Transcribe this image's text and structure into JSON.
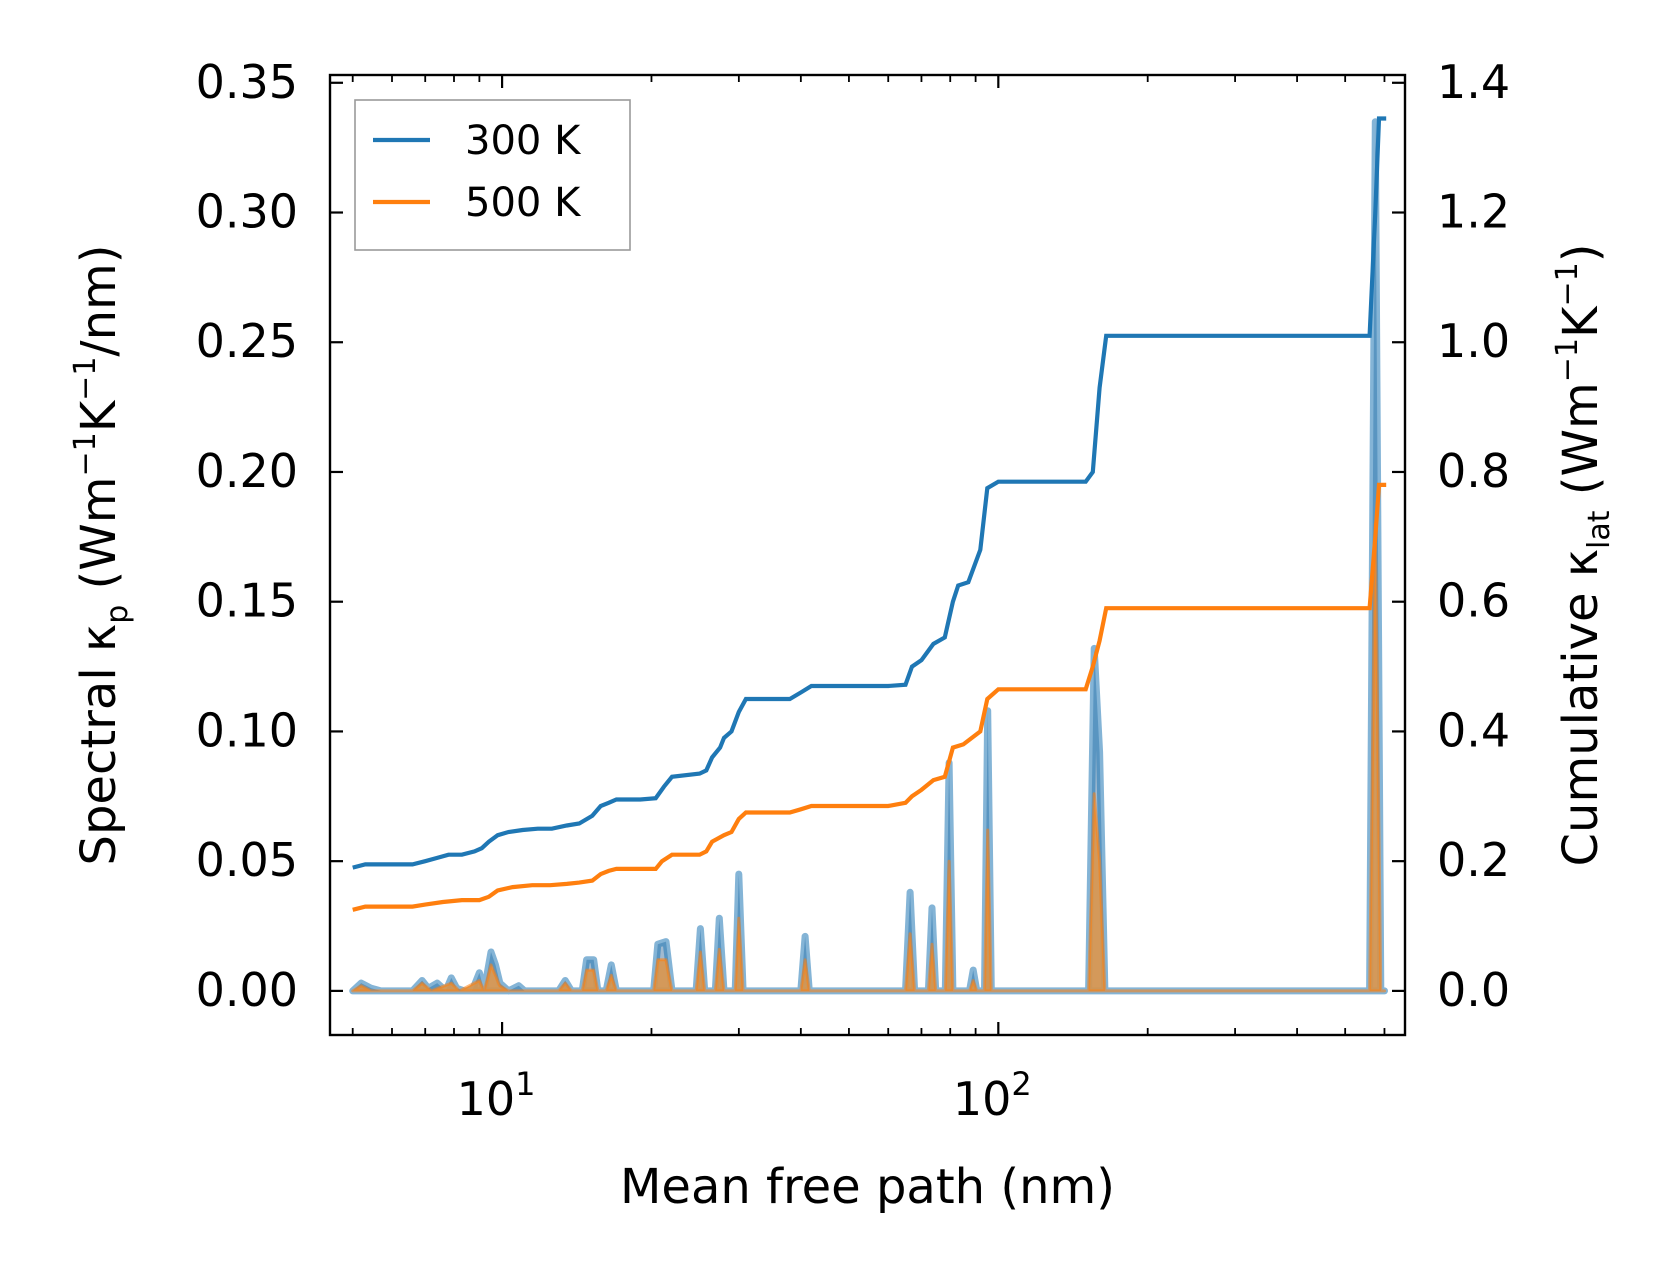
{
  "chart_data": {
    "type": "line",
    "xscale": "log",
    "xlim": [
      4.5,
      660
    ],
    "xlabel": "Mean free path (nm)",
    "x_ticks": [
      {
        "value": 10,
        "base": "10",
        "exp": "1"
      },
      {
        "value": 100,
        "base": "10",
        "exp": "2"
      }
    ],
    "y_left": {
      "label_prefix": "Spectral κ",
      "label_sub": "p",
      "label_mid": " (Wm",
      "label_sup1": "−1",
      "label_k": "K",
      "label_sup2": "−1",
      "label_suffix": "/nm)",
      "ylim": [
        -0.017,
        0.353
      ],
      "ticks": [
        0.0,
        0.05,
        0.1,
        0.15,
        0.2,
        0.25,
        0.3,
        0.35
      ],
      "tick_labels": [
        "0.00",
        "0.05",
        "0.10",
        "0.15",
        "0.20",
        "0.25",
        "0.30",
        "0.35"
      ]
    },
    "y_right": {
      "label_prefix": "Cumulative κ",
      "label_sub": "lat",
      "label_mid": " (Wm",
      "label_sup1": "−1",
      "label_k": "K",
      "label_sup2": "−1",
      "label_suffix": ")",
      "ylim": [
        -0.068,
        1.412
      ],
      "ticks": [
        0.0,
        0.2,
        0.4,
        0.6,
        0.8,
        1.0,
        1.2,
        1.4
      ],
      "tick_labels": [
        "0.0",
        "0.2",
        "0.4",
        "0.6",
        "0.8",
        "1.0",
        "1.2",
        "1.4"
      ]
    },
    "legend": {
      "position": "top-left",
      "entries": [
        {
          "label": "300 K",
          "color": "#1f77b4"
        },
        {
          "label": "500 K",
          "color": "#ff7f0e"
        }
      ]
    },
    "colors": {
      "t300": "#1f77b4",
      "t500": "#ff7f0e",
      "fill300": "#8aa9c4",
      "fill500": "#d9964c",
      "axis": "#000000",
      "legend_border": "#9a9a9a"
    },
    "series": [
      {
        "name": "300 K",
        "kind": "cumulative",
        "axis": "right",
        "points": [
          [
            5.0,
            0.19
          ],
          [
            5.3,
            0.195
          ],
          [
            5.6,
            0.195
          ],
          [
            6.0,
            0.195
          ],
          [
            6.6,
            0.195
          ],
          [
            7.0,
            0.2
          ],
          [
            7.4,
            0.205
          ],
          [
            7.8,
            0.21
          ],
          [
            8.3,
            0.21
          ],
          [
            8.8,
            0.215
          ],
          [
            9.1,
            0.22
          ],
          [
            9.4,
            0.23
          ],
          [
            9.8,
            0.24
          ],
          [
            10.3,
            0.245
          ],
          [
            11.0,
            0.248
          ],
          [
            11.8,
            0.25
          ],
          [
            12.6,
            0.25
          ],
          [
            13.5,
            0.255
          ],
          [
            14.3,
            0.258
          ],
          [
            15.2,
            0.27
          ],
          [
            15.8,
            0.285
          ],
          [
            16.4,
            0.29
          ],
          [
            17.0,
            0.295
          ],
          [
            19.0,
            0.295
          ],
          [
            20.4,
            0.297
          ],
          [
            21.2,
            0.315
          ],
          [
            22.0,
            0.33
          ],
          [
            25.0,
            0.335
          ],
          [
            25.8,
            0.34
          ],
          [
            26.5,
            0.36
          ],
          [
            27.5,
            0.375
          ],
          [
            28.0,
            0.39
          ],
          [
            29.0,
            0.4
          ],
          [
            30.0,
            0.43
          ],
          [
            31.0,
            0.45
          ],
          [
            38.0,
            0.45
          ],
          [
            40.0,
            0.46
          ],
          [
            42.0,
            0.47
          ],
          [
            60.0,
            0.47
          ],
          [
            65.0,
            0.472
          ],
          [
            67.0,
            0.5
          ],
          [
            70.0,
            0.51
          ],
          [
            74.0,
            0.535
          ],
          [
            78.0,
            0.545
          ],
          [
            81.0,
            0.6
          ],
          [
            83.0,
            0.625
          ],
          [
            87.0,
            0.63
          ],
          [
            92.0,
            0.68
          ],
          [
            95.0,
            0.775
          ],
          [
            100.0,
            0.785
          ],
          [
            150.0,
            0.785
          ],
          [
            155.0,
            0.8
          ],
          [
            160.0,
            0.93
          ],
          [
            165.0,
            1.01
          ],
          [
            250.0,
            1.01
          ],
          [
            560.0,
            1.01
          ],
          [
            575.0,
            1.2
          ],
          [
            585.0,
            1.345
          ],
          [
            605.0,
            1.345
          ]
        ]
      },
      {
        "name": "500 K",
        "kind": "cumulative",
        "axis": "right",
        "points": [
          [
            5.0,
            0.125
          ],
          [
            5.3,
            0.13
          ],
          [
            6.0,
            0.13
          ],
          [
            6.6,
            0.13
          ],
          [
            7.0,
            0.133
          ],
          [
            7.6,
            0.137
          ],
          [
            8.3,
            0.14
          ],
          [
            9.0,
            0.14
          ],
          [
            9.4,
            0.145
          ],
          [
            9.8,
            0.155
          ],
          [
            10.5,
            0.16
          ],
          [
            11.5,
            0.163
          ],
          [
            12.5,
            0.163
          ],
          [
            13.5,
            0.165
          ],
          [
            14.3,
            0.167
          ],
          [
            15.2,
            0.17
          ],
          [
            15.8,
            0.18
          ],
          [
            16.4,
            0.185
          ],
          [
            17.0,
            0.188
          ],
          [
            20.4,
            0.188
          ],
          [
            21.0,
            0.2
          ],
          [
            22.0,
            0.21
          ],
          [
            25.0,
            0.21
          ],
          [
            25.8,
            0.215
          ],
          [
            26.5,
            0.23
          ],
          [
            28.0,
            0.24
          ],
          [
            29.0,
            0.245
          ],
          [
            30.0,
            0.265
          ],
          [
            31.0,
            0.275
          ],
          [
            38.0,
            0.275
          ],
          [
            40.0,
            0.28
          ],
          [
            42.0,
            0.285
          ],
          [
            60.0,
            0.285
          ],
          [
            65.0,
            0.29
          ],
          [
            67.0,
            0.3
          ],
          [
            70.0,
            0.31
          ],
          [
            74.0,
            0.325
          ],
          [
            78.0,
            0.33
          ],
          [
            81.0,
            0.375
          ],
          [
            85.0,
            0.38
          ],
          [
            92.0,
            0.4
          ],
          [
            95.0,
            0.45
          ],
          [
            100.0,
            0.465
          ],
          [
            150.0,
            0.465
          ],
          [
            155.0,
            0.5
          ],
          [
            160.0,
            0.54
          ],
          [
            165.0,
            0.59
          ],
          [
            250.0,
            0.59
          ],
          [
            560.0,
            0.59
          ],
          [
            575.0,
            0.7
          ],
          [
            585.0,
            0.78
          ],
          [
            605.0,
            0.78
          ]
        ]
      },
      {
        "name": "300 K spectral",
        "kind": "spectral",
        "axis": "left",
        "points": [
          [
            5.0,
            0.0
          ],
          [
            5.2,
            0.003
          ],
          [
            5.45,
            0.001
          ],
          [
            5.7,
            0.0
          ],
          [
            6.6,
            0.0
          ],
          [
            6.9,
            0.004
          ],
          [
            7.1,
            0.001
          ],
          [
            7.4,
            0.003
          ],
          [
            7.7,
            0.0
          ],
          [
            7.9,
            0.005
          ],
          [
            8.1,
            0.001
          ],
          [
            8.4,
            0.0
          ],
          [
            8.7,
            0.0
          ],
          [
            9.0,
            0.007
          ],
          [
            9.2,
            0.0
          ],
          [
            9.5,
            0.015
          ],
          [
            9.7,
            0.01
          ],
          [
            9.9,
            0.003
          ],
          [
            10.3,
            0.0
          ],
          [
            10.8,
            0.002
          ],
          [
            11.1,
            0.0
          ],
          [
            13.0,
            0.0
          ],
          [
            13.4,
            0.004
          ],
          [
            13.8,
            0.0
          ],
          [
            14.5,
            0.0
          ],
          [
            14.8,
            0.012
          ],
          [
            15.3,
            0.012
          ],
          [
            15.6,
            0.0
          ],
          [
            16.2,
            0.0
          ],
          [
            16.6,
            0.01
          ],
          [
            17.0,
            0.0
          ],
          [
            20.2,
            0.0
          ],
          [
            20.6,
            0.018
          ],
          [
            21.4,
            0.019
          ],
          [
            22.0,
            0.0
          ],
          [
            24.6,
            0.0
          ],
          [
            25.1,
            0.024
          ],
          [
            25.6,
            0.0
          ],
          [
            26.9,
            0.0
          ],
          [
            27.4,
            0.028
          ],
          [
            28.0,
            0.0
          ],
          [
            29.5,
            0.0
          ],
          [
            30.0,
            0.045
          ],
          [
            30.6,
            0.0
          ],
          [
            40.0,
            0.0
          ],
          [
            40.8,
            0.021
          ],
          [
            41.6,
            0.0
          ],
          [
            65.0,
            0.0
          ],
          [
            66.4,
            0.038
          ],
          [
            67.8,
            0.0
          ],
          [
            72.3,
            0.0
          ],
          [
            73.5,
            0.032
          ],
          [
            74.8,
            0.0
          ],
          [
            78.2,
            0.0
          ],
          [
            79.6,
            0.088
          ],
          [
            81.0,
            0.0
          ],
          [
            87.5,
            0.0
          ],
          [
            89.0,
            0.008
          ],
          [
            90.5,
            0.0
          ],
          [
            93.8,
            0.0
          ],
          [
            95.2,
            0.108
          ],
          [
            96.8,
            0.0
          ],
          [
            148.0,
            0.0
          ],
          [
            152.0,
            0.0
          ],
          [
            156.0,
            0.132
          ],
          [
            160.0,
            0.092
          ],
          [
            164.0,
            0.0
          ],
          [
            540.0,
            0.0
          ],
          [
            560.0,
            0.0
          ],
          [
            575.0,
            0.335
          ],
          [
            590.0,
            0.0
          ],
          [
            600.0,
            0.0
          ]
        ]
      },
      {
        "name": "500 K spectral",
        "kind": "spectral",
        "axis": "left",
        "points": [
          [
            5.0,
            0.0
          ],
          [
            5.2,
            0.002
          ],
          [
            5.45,
            0.0
          ],
          [
            6.6,
            0.0
          ],
          [
            6.9,
            0.003
          ],
          [
            7.2,
            0.0
          ],
          [
            7.9,
            0.003
          ],
          [
            8.2,
            0.0
          ],
          [
            9.0,
            0.004
          ],
          [
            9.2,
            0.0
          ],
          [
            9.5,
            0.01
          ],
          [
            9.9,
            0.002
          ],
          [
            10.3,
            0.0
          ],
          [
            13.0,
            0.0
          ],
          [
            13.4,
            0.003
          ],
          [
            13.8,
            0.0
          ],
          [
            14.5,
            0.0
          ],
          [
            14.8,
            0.008
          ],
          [
            15.3,
            0.008
          ],
          [
            15.6,
            0.0
          ],
          [
            16.2,
            0.0
          ],
          [
            16.6,
            0.006
          ],
          [
            17.0,
            0.0
          ],
          [
            20.2,
            0.0
          ],
          [
            20.6,
            0.012
          ],
          [
            21.4,
            0.012
          ],
          [
            22.0,
            0.0
          ],
          [
            24.6,
            0.0
          ],
          [
            25.1,
            0.015
          ],
          [
            25.6,
            0.0
          ],
          [
            26.9,
            0.0
          ],
          [
            27.4,
            0.016
          ],
          [
            28.0,
            0.0
          ],
          [
            29.5,
            0.0
          ],
          [
            30.0,
            0.028
          ],
          [
            30.6,
            0.0
          ],
          [
            40.0,
            0.0
          ],
          [
            40.8,
            0.012
          ],
          [
            41.6,
            0.0
          ],
          [
            65.0,
            0.0
          ],
          [
            66.4,
            0.022
          ],
          [
            67.8,
            0.0
          ],
          [
            72.3,
            0.0
          ],
          [
            73.5,
            0.018
          ],
          [
            74.8,
            0.0
          ],
          [
            78.2,
            0.0
          ],
          [
            79.6,
            0.05
          ],
          [
            81.0,
            0.0
          ],
          [
            87.5,
            0.0
          ],
          [
            89.0,
            0.004
          ],
          [
            90.5,
            0.0
          ],
          [
            93.8,
            0.0
          ],
          [
            95.2,
            0.062
          ],
          [
            96.8,
            0.0
          ],
          [
            152.0,
            0.0
          ],
          [
            156.0,
            0.076
          ],
          [
            160.0,
            0.05
          ],
          [
            164.0,
            0.0
          ],
          [
            560.0,
            0.0
          ],
          [
            575.0,
            0.18
          ],
          [
            590.0,
            0.0
          ],
          [
            600.0,
            0.0
          ]
        ]
      }
    ]
  }
}
